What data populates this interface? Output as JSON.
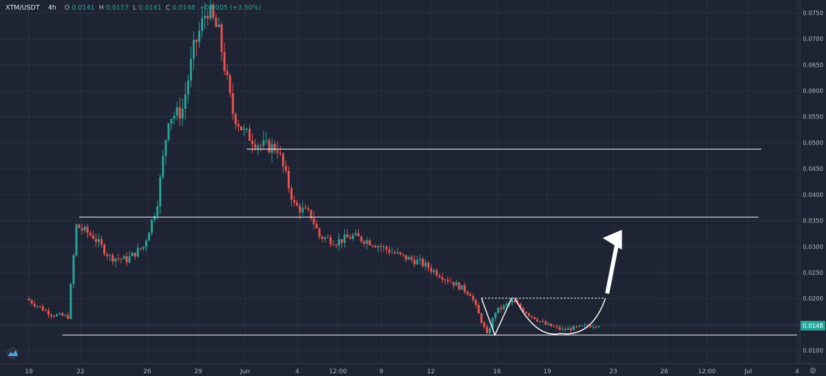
{
  "header": {
    "symbol": "XTM/USDT",
    "interval": "4h",
    "open_label": "O",
    "open": "0.0141",
    "high_label": "H",
    "high": "0.0157",
    "low_label": "L",
    "low": "0.0141",
    "close_label": "C",
    "close": "0.0148",
    "change": "+0.0005 (+3.50%)"
  },
  "last_price_label": "0.0148",
  "colors": {
    "background": "#1e2433",
    "grid": "#2a3142",
    "up": "#26a69a",
    "down": "#ef5350",
    "annotation": "#ffffff",
    "price_tag": "#26a69a"
  },
  "icons": {
    "logo": "tradingview-logo-icon",
    "settings": "gear-icon"
  },
  "chart_data": {
    "type": "candlestick",
    "title": "XTM/USDT 4h",
    "y_ticks": [
      "0.0100",
      "0.0150",
      "0.0200",
      "0.0250",
      "0.0300",
      "0.0350",
      "0.0400",
      "0.0450",
      "0.0500",
      "0.0550",
      "0.0600",
      "0.0650",
      "0.0700",
      "0.0750"
    ],
    "x_ticks": [
      "19",
      "22",
      "26",
      "29",
      "Jun",
      "4",
      "12:00",
      "9",
      "12",
      "16",
      "19",
      "23",
      "26",
      "12:00",
      "Jul",
      "4"
    ],
    "ylim": [
      0.0075,
      0.0775
    ],
    "grid": true,
    "last_price": 0.0148,
    "price_path": [
      [
        19.0,
        0.02
      ],
      [
        20.5,
        0.017
      ],
      [
        21.5,
        0.0165
      ],
      [
        22.0,
        0.034
      ],
      [
        23.0,
        0.032
      ],
      [
        24.0,
        0.028
      ],
      [
        25.0,
        0.0275
      ],
      [
        26.0,
        0.03
      ],
      [
        26.8,
        0.038
      ],
      [
        27.5,
        0.055
      ],
      [
        28.3,
        0.056
      ],
      [
        29.0,
        0.068
      ],
      [
        29.8,
        0.076
      ],
      [
        30.5,
        0.071
      ],
      [
        31.3,
        0.056
      ],
      [
        32.0,
        0.052
      ],
      [
        33.0,
        0.0495
      ],
      [
        34.0,
        0.049
      ],
      [
        35.0,
        0.038
      ],
      [
        36.0,
        0.036
      ],
      [
        36.5,
        0.032
      ],
      [
        37.5,
        0.031
      ],
      [
        38.5,
        0.032
      ],
      [
        39.5,
        0.031
      ],
      [
        40.5,
        0.0295
      ],
      [
        41.5,
        0.028
      ],
      [
        42.5,
        0.027
      ],
      [
        43.5,
        0.025
      ],
      [
        44.5,
        0.023
      ],
      [
        45.5,
        0.021
      ],
      [
        46.5,
        0.013
      ],
      [
        47.0,
        0.0175
      ],
      [
        48.0,
        0.0195
      ],
      [
        49.0,
        0.017
      ],
      [
        50.0,
        0.015
      ],
      [
        51.0,
        0.014
      ],
      [
        52.0,
        0.0145
      ],
      [
        53.0,
        0.015
      ]
    ],
    "horizontal_lines": [
      0.0488,
      0.0357,
      0.013
    ],
    "resistance_dotted": 0.0201,
    "annotations": [
      {
        "type": "v_pattern",
        "points": [
          [
            46.0,
            0.0201
          ],
          [
            46.8,
            0.013
          ],
          [
            47.8,
            0.0201
          ]
        ]
      },
      {
        "type": "cup_curve",
        "from": [
          48.0,
          0.0201
        ],
        "bottom": [
          50.7,
          0.0133
        ],
        "to": [
          53.4,
          0.0201
        ]
      },
      {
        "type": "arrow_up",
        "from": [
          53.5,
          0.021
        ],
        "to": [
          54.3,
          0.033
        ]
      }
    ]
  }
}
